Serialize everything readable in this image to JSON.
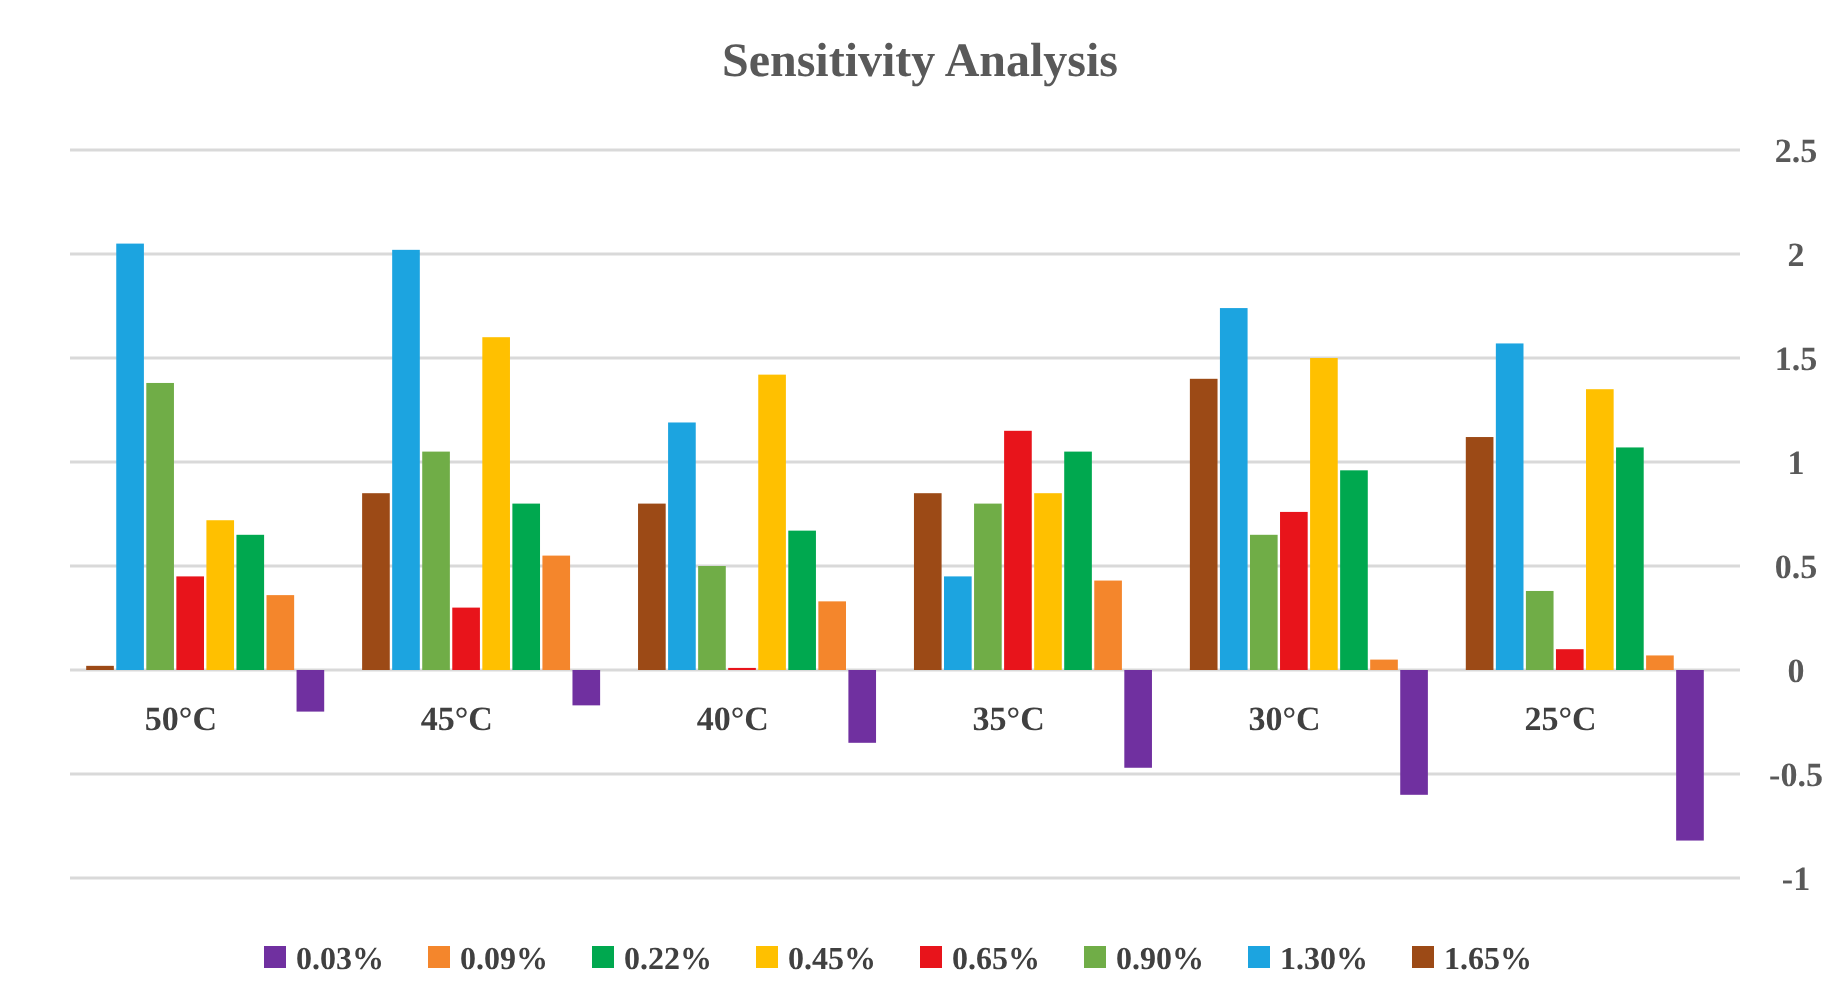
{
  "chart_data": {
    "type": "bar",
    "title": "Sensitivity Analysis",
    "categories": [
      "50°C",
      "45°C",
      "40°C",
      "35°C",
      "30°C",
      "25°C"
    ],
    "series": [
      {
        "name": "0.03%",
        "color": "#7030a0",
        "values": [
          -0.2,
          -0.17,
          -0.35,
          -0.47,
          -0.6,
          -0.82
        ]
      },
      {
        "name": "0.09%",
        "color": "#f4862c",
        "values": [
          0.36,
          0.55,
          0.33,
          0.43,
          0.05,
          0.07
        ]
      },
      {
        "name": "0.22%",
        "color": "#00a84f",
        "values": [
          0.65,
          0.8,
          0.67,
          1.05,
          0.96,
          1.07
        ]
      },
      {
        "name": "0.45%",
        "color": "#ffc000",
        "values": [
          0.72,
          1.6,
          1.42,
          0.85,
          1.5,
          1.35
        ]
      },
      {
        "name": "0.65%",
        "color": "#e8141b",
        "values": [
          0.45,
          0.3,
          0.01,
          1.15,
          0.76,
          0.1
        ]
      },
      {
        "name": "0.90%",
        "color": "#70ad47",
        "values": [
          1.38,
          1.05,
          0.5,
          0.8,
          0.65,
          0.38
        ]
      },
      {
        "name": "1.30%",
        "color": "#1ca4e0",
        "values": [
          2.05,
          2.02,
          1.19,
          0.45,
          1.74,
          1.57
        ]
      },
      {
        "name": "1.65%",
        "color": "#9c4a16",
        "values": [
          0.02,
          0.85,
          0.8,
          0.85,
          1.4,
          1.12
        ]
      }
    ],
    "ylim": [
      -1,
      2.5
    ],
    "yticks": [
      {
        "value": -1,
        "label": "-1"
      },
      {
        "value": -0.5,
        "label": "-0.5"
      },
      0,
      0.5,
      1,
      1.5,
      2,
      2.5
    ],
    "grid": "y",
    "legend": "bottom"
  }
}
